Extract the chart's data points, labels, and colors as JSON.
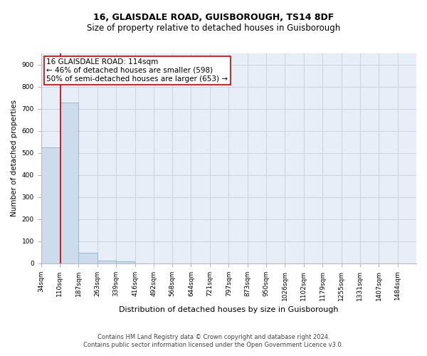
{
  "title": "16, GLAISDALE ROAD, GUISBOROUGH, TS14 8DF",
  "subtitle": "Size of property relative to detached houses in Guisborough",
  "xlabel": "Distribution of detached houses by size in Guisborough",
  "ylabel": "Number of detached properties",
  "footnote1": "Contains HM Land Registry data © Crown copyright and database right 2024.",
  "footnote2": "Contains public sector information licensed under the Open Government Licence v3.0.",
  "bar_edges": [
    34,
    110,
    187,
    263,
    339,
    416,
    492,
    568,
    644,
    721,
    797,
    873,
    950,
    1026,
    1102,
    1179,
    1255,
    1331,
    1407,
    1484,
    1560
  ],
  "bar_heights": [
    524,
    727,
    47,
    12,
    10,
    0,
    0,
    0,
    0,
    0,
    0,
    0,
    0,
    0,
    0,
    0,
    0,
    0,
    0,
    0
  ],
  "bar_color": "#ccdcec",
  "bar_edgecolor": "#9ab8d0",
  "property_size": 114,
  "property_label": "16 GLAISDALE ROAD: 114sqm",
  "annotation_line1": "← 46% of detached houses are smaller (598)",
  "annotation_line2": "50% of semi-detached houses are larger (653) →",
  "red_line_color": "#cc0000",
  "annotation_box_color": "#ffffff",
  "annotation_box_edgecolor": "#cc0000",
  "ylim": [
    0,
    950
  ],
  "yticks": [
    0,
    100,
    200,
    300,
    400,
    500,
    600,
    700,
    800,
    900
  ],
  "grid_color": "#c8d4e4",
  "background_color": "#e8eef8",
  "title_fontsize": 9,
  "subtitle_fontsize": 8.5,
  "annotation_fontsize": 7.5,
  "ylabel_fontsize": 7.5,
  "xlabel_fontsize": 8,
  "tick_fontsize": 6.5,
  "footnote_fontsize": 6
}
